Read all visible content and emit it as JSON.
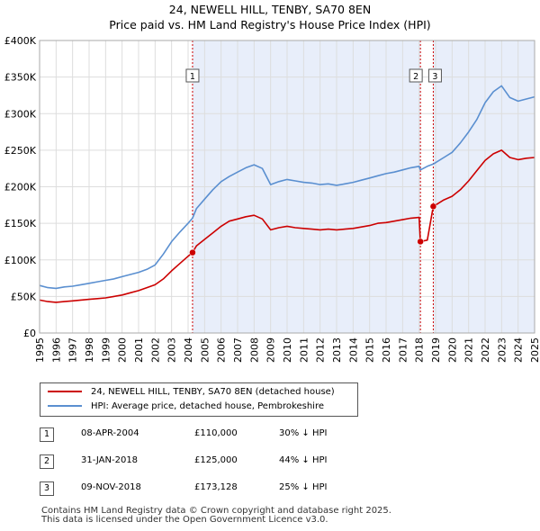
{
  "title": {
    "line1": "24, NEWELL HILL, TENBY, SA70 8EN",
    "line2": "Price paid vs. HM Land Registry's House Price Index (HPI)"
  },
  "colors": {
    "property": "#cc0000",
    "hpi": "#5a8fd0",
    "shade": "#e8eefa",
    "marker_line": "#cc0000"
  },
  "legend": {
    "property_label": "24, NEWELL HILL, TENBY, SA70 8EN (detached house)",
    "hpi_label": "HPI: Average price, detached house, Pembrokeshire"
  },
  "sales": [
    {
      "num": "1",
      "date": "08-APR-2004",
      "price": "£110,000",
      "delta": "30% ↓ HPI"
    },
    {
      "num": "2",
      "date": "31-JAN-2018",
      "price": "£125,000",
      "delta": "44% ↓ HPI"
    },
    {
      "num": "3",
      "date": "09-NOV-2018",
      "price": "£173,128",
      "delta": "25% ↓ HPI"
    }
  ],
  "footer": {
    "line1": "Contains HM Land Registry data © Crown copyright and database right 2025.",
    "line2": "This data is licensed under the Open Government Licence v3.0."
  },
  "chart_data": {
    "type": "line",
    "title": "24, NEWELL HILL, TENBY, SA70 8EN — Price paid vs. HM Land Registry's House Price Index (HPI)",
    "xlabel": "",
    "ylabel": "",
    "xlim": [
      1995,
      2025
    ],
    "ylim": [
      0,
      400000
    ],
    "grid": true,
    "x_ticks": [
      "1995",
      "1996",
      "1997",
      "1998",
      "1999",
      "2000",
      "2001",
      "2002",
      "2003",
      "2004",
      "2005",
      "2006",
      "2007",
      "2008",
      "2009",
      "2010",
      "2011",
      "2012",
      "2013",
      "2014",
      "2015",
      "2016",
      "2017",
      "2018",
      "2019",
      "2020",
      "2021",
      "2022",
      "2023",
      "2024",
      "2025"
    ],
    "y_ticks": [
      {
        "value": 0,
        "label": "£0"
      },
      {
        "value": 50000,
        "label": "£50K"
      },
      {
        "value": 100000,
        "label": "£100K"
      },
      {
        "value": 150000,
        "label": "£150K"
      },
      {
        "value": 200000,
        "label": "£200K"
      },
      {
        "value": 250000,
        "label": "£250K"
      },
      {
        "value": 300000,
        "label": "£300K"
      },
      {
        "value": 350000,
        "label": "£350K"
      },
      {
        "value": 400000,
        "label": "£400K"
      }
    ],
    "ownership_shading": [
      [
        2004.27,
        2018.08
      ],
      [
        2018.86,
        2025.0
      ]
    ],
    "series": [
      {
        "name": "HPI: Average price, detached house, Pembrokeshire",
        "x": [
          1995.0,
          1995.5,
          1996.0,
          1996.5,
          1997.0,
          1997.5,
          1998.0,
          1998.5,
          1999.0,
          1999.5,
          2000.0,
          2000.5,
          2001.0,
          2001.5,
          2002.0,
          2002.5,
          2003.0,
          2003.5,
          2004.0,
          2004.27,
          2004.5,
          2005.0,
          2005.5,
          2006.0,
          2006.5,
          2007.0,
          2007.5,
          2008.0,
          2008.5,
          2009.0,
          2009.5,
          2010.0,
          2010.5,
          2011.0,
          2011.5,
          2012.0,
          2012.5,
          2013.0,
          2013.5,
          2014.0,
          2014.5,
          2015.0,
          2015.5,
          2016.0,
          2016.5,
          2017.0,
          2017.5,
          2018.0,
          2018.08,
          2018.5,
          2018.86,
          2019.0,
          2019.5,
          2020.0,
          2020.5,
          2021.0,
          2021.5,
          2022.0,
          2022.5,
          2023.0,
          2023.5,
          2024.0,
          2024.5,
          2025.0
        ],
        "values": [
          65000,
          62000,
          61000,
          63000,
          64000,
          66000,
          68000,
          70000,
          72000,
          74000,
          77000,
          80000,
          83000,
          87000,
          93000,
          108000,
          125000,
          138000,
          150000,
          157000,
          170000,
          183000,
          196000,
          207000,
          214000,
          220000,
          226000,
          230000,
          225000,
          203000,
          207000,
          210000,
          208000,
          206000,
          205000,
          203000,
          204000,
          202000,
          204000,
          206000,
          209000,
          212000,
          215000,
          218000,
          220000,
          223000,
          226000,
          228000,
          223000,
          228000,
          231000,
          233000,
          240000,
          247000,
          260000,
          275000,
          292000,
          315000,
          330000,
          338000,
          322000,
          317000,
          320000,
          323000
        ]
      },
      {
        "name": "24, NEWELL HILL, TENBY, SA70 8EN (detached house)",
        "x": [
          1995.0,
          1995.5,
          1996.0,
          1996.5,
          1997.0,
          1997.5,
          1998.0,
          1998.5,
          1999.0,
          1999.5,
          2000.0,
          2000.5,
          2001.0,
          2001.5,
          2002.0,
          2002.5,
          2003.0,
          2003.5,
          2004.0,
          2004.27,
          2004.5,
          2005.0,
          2005.5,
          2006.0,
          2006.5,
          2007.0,
          2007.5,
          2008.0,
          2008.5,
          2009.0,
          2009.5,
          2010.0,
          2010.5,
          2011.0,
          2011.5,
          2012.0,
          2012.5,
          2013.0,
          2013.5,
          2014.0,
          2014.5,
          2015.0,
          2015.5,
          2016.0,
          2016.5,
          2017.0,
          2017.5,
          2018.0,
          2018.08,
          2018.5,
          2018.86,
          2019.0,
          2019.5,
          2020.0,
          2020.5,
          2021.0,
          2021.5,
          2022.0,
          2022.5,
          2023.0,
          2023.5,
          2024.0,
          2024.5,
          2025.0
        ],
        "values": [
          45000,
          43000,
          42000,
          43000,
          44000,
          45000,
          46000,
          47000,
          48000,
          50000,
          52000,
          55000,
          58000,
          62000,
          66000,
          74000,
          85000,
          95000,
          105000,
          110000,
          119000,
          128000,
          137000,
          146000,
          153000,
          156000,
          159000,
          161000,
          156000,
          141000,
          144000,
          146000,
          144000,
          143000,
          142000,
          141000,
          142000,
          141000,
          142000,
          143000,
          145000,
          147000,
          150000,
          151000,
          153000,
          155000,
          157000,
          158000,
          125000,
          127000,
          173128,
          175000,
          182000,
          187000,
          196000,
          208000,
          222000,
          236000,
          245000,
          250000,
          240000,
          237000,
          239000,
          240000
        ]
      }
    ],
    "sale_markers": [
      {
        "label": "1",
        "x": 2004.27,
        "value": 110000
      },
      {
        "label": "2",
        "x": 2018.08,
        "value": 125000
      },
      {
        "label": "3",
        "x": 2018.86,
        "value": 173128
      }
    ]
  }
}
